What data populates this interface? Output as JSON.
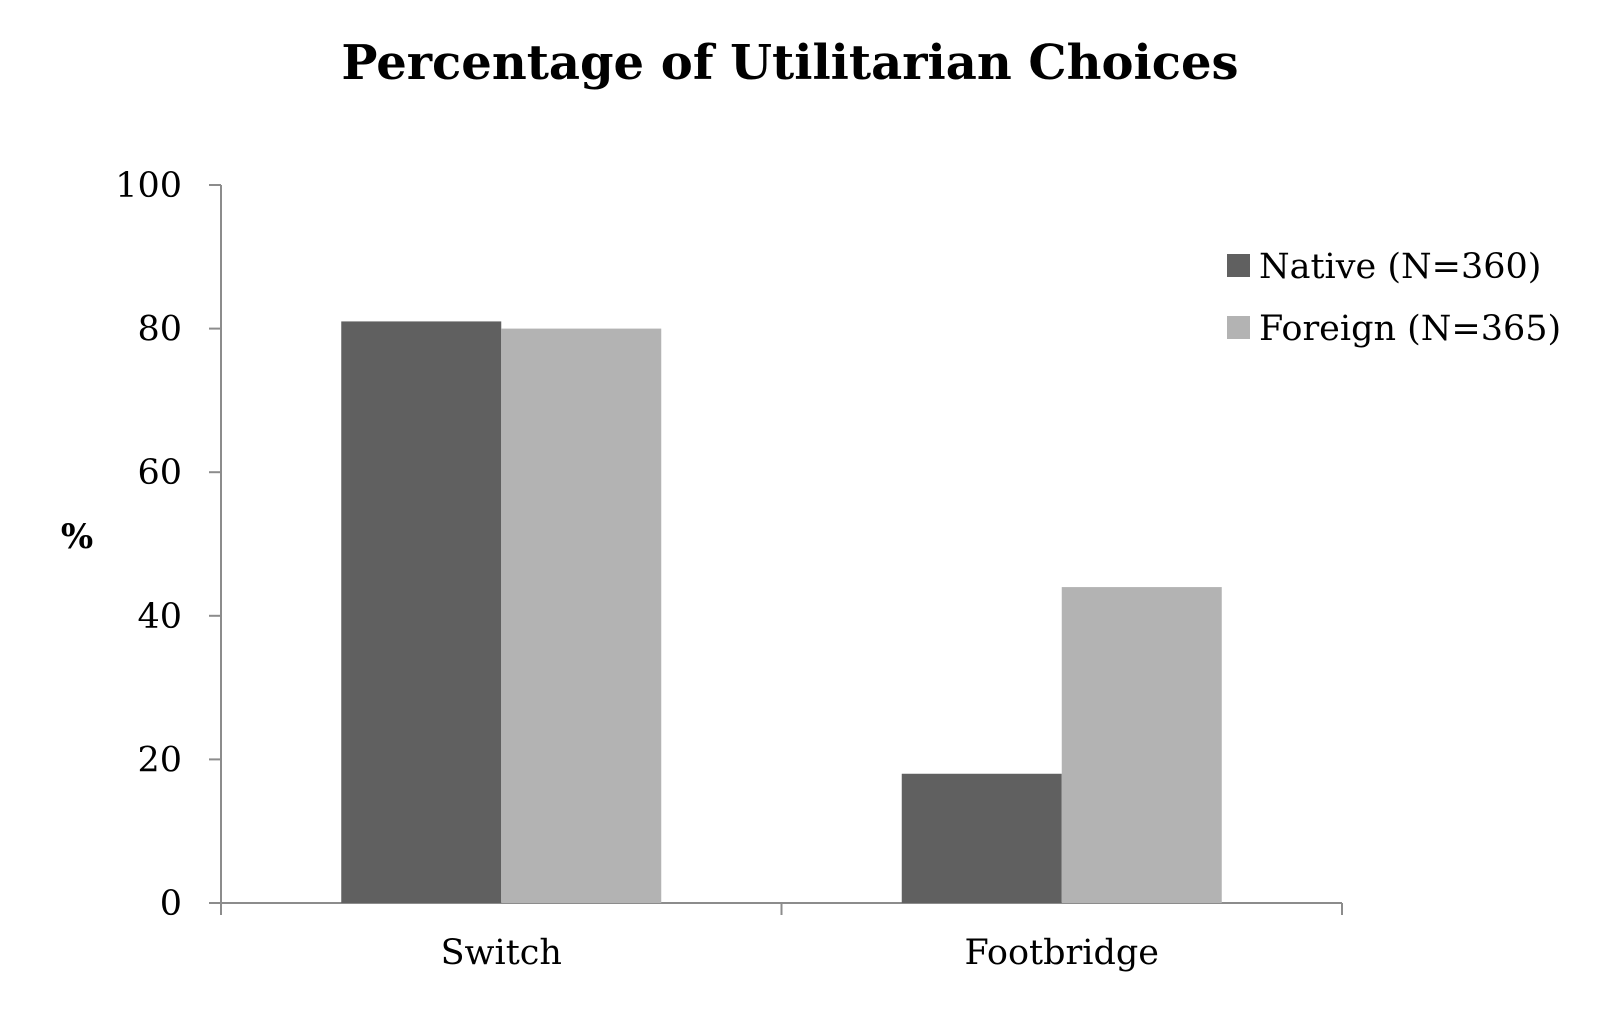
{
  "chart_data": {
    "type": "bar",
    "title": "Percentage of Utilitarian Choices",
    "xlabel": "",
    "ylabel": "%",
    "ylim": [
      0,
      100
    ],
    "yticks": [
      0,
      20,
      40,
      60,
      80,
      100
    ],
    "categories": [
      "Switch",
      "Footbridge"
    ],
    "series": [
      {
        "name": "Native (N=360)",
        "values": [
          81,
          18
        ],
        "color": "#606060"
      },
      {
        "name": "Foreign (N=365)",
        "values": [
          80,
          44
        ],
        "color": "#b3b3b3"
      }
    ],
    "grid": false,
    "legend_position": "top-right"
  }
}
